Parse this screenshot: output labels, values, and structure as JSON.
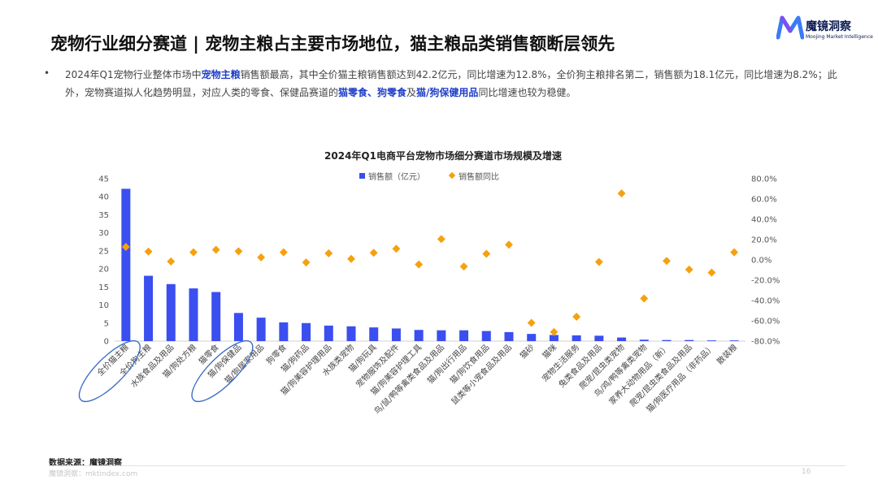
{
  "header": {
    "title": "宠物行业细分赛道 | 宠物主粮占主要市场地位，猫主粮品类销售额断层领先"
  },
  "logo": {
    "name": "魔镜洞察",
    "en": "Moojing Market Intelligence"
  },
  "summary": {
    "bullet": "•",
    "p1": "2024年Q1宠物行业整体市场中",
    "h1": "宠物主粮",
    "p2": "销售额最高，其中全价猫主粮销售额达到42.2亿元，同比增速为12.8%，全价狗主粮排名第二，销售额为18.1亿元，同比增速为8.2%；此外，宠物赛道拟人化趋势明显，对应人类的零食、保健品赛道的",
    "h2": "猫零食、狗零食",
    "p3": "及",
    "h3": "猫/狗保健用品",
    "p4": "同比增速也较为稳健。"
  },
  "footer": {
    "source": "数据来源：魔镜洞察",
    "watermark": "魔镜洞察：mktindex.com",
    "page": "16"
  },
  "colors": {
    "bar": "#3b4ef0",
    "marker": "#f5a10f",
    "highlight": "#1f3ec9",
    "circle": "#3a6bc4"
  },
  "chart_data": {
    "type": "bar",
    "title": "2024年Q1电商平台宠物市场细分赛道市场规模及增速",
    "legend": [
      "销售额（亿元）",
      "销售额同比"
    ],
    "legend_position": "top",
    "categories": [
      "全价猫主粮",
      "全价狗主粮",
      "水族食品及用品",
      "猫/狗处方粮",
      "猫零食",
      "猫/狗保健品",
      "猫/狗居家用品",
      "狗零食",
      "猫/狗药品",
      "猫/狗美容护理用品",
      "水族类宠物",
      "猫/狗玩具",
      "宠物服饰及配件",
      "猫/狗美容护理工具",
      "鸟/鼠/鸭等禽类食品及用品",
      "猫/狗出行用品",
      "猫/狗饮食用品",
      "鼠类等小宠食品及用品",
      "猫砂",
      "猫咪",
      "宠物生活服务",
      "兔类食品及用品",
      "爬宠/昆虫类宠物",
      "鸟/鸡/鸭等禽类宠物",
      "家养大动物用品（新）",
      "爬宠/昆虫类食品及用品",
      "猫/狗医疗用品（非药品）",
      "散装粮"
    ],
    "series": [
      {
        "name": "销售额（亿元）",
        "axis": "left",
        "values": [
          42.2,
          18.1,
          15.8,
          14.6,
          13.6,
          7.8,
          6.5,
          5.2,
          5.0,
          4.3,
          4.1,
          3.8,
          3.5,
          3.1,
          3.0,
          3.0,
          2.8,
          2.5,
          2.0,
          1.7,
          1.6,
          1.5,
          1.0,
          0.4,
          0.3,
          0.3,
          0.2,
          0.2
        ]
      },
      {
        "name": "销售额同比",
        "axis": "right",
        "values": [
          12.8,
          8.2,
          -1.5,
          7.5,
          10.0,
          8.5,
          2.5,
          7.5,
          -2.5,
          6.5,
          1.0,
          7.0,
          11.0,
          -4.5,
          20.5,
          -6.5,
          6.0,
          15.0,
          -62.0,
          -71.0,
          -56.0,
          -2.0,
          65.5,
          -38.0,
          -1.0,
          -9.5,
          -12.5,
          7.5
        ]
      }
    ],
    "ylim_left": [
      0,
      45
    ],
    "ylim_right": [
      -80,
      80
    ],
    "yticks_left": [
      "0",
      "5",
      "10",
      "15",
      "20",
      "25",
      "30",
      "35",
      "40",
      "45"
    ],
    "yticks_right": [
      "-80.0%",
      "-60.0%",
      "-40.0%",
      "-20.0%",
      "0.0%",
      "20.0%",
      "40.0%",
      "60.0%",
      "80.0%"
    ],
    "highlighted_categories": [
      "全价猫主粮",
      "猫/狗保健品"
    ],
    "grid": false
  }
}
